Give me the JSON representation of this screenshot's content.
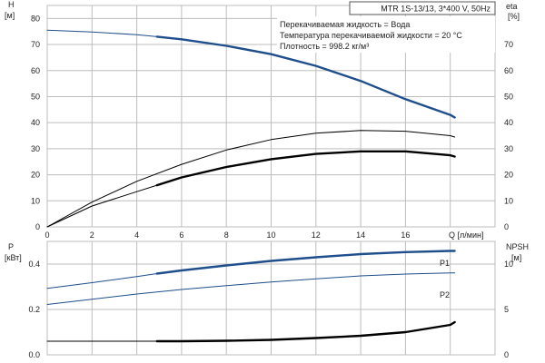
{
  "model_label": "MTR 1S-13/13, 3*400 V, 50Hz",
  "info_lines": [
    "Перекачиваемая жидкость = Вода",
    "Температура перекачиваемой жидкости = 20 °C",
    "Плотность = 998.2 кг/м³"
  ],
  "colors": {
    "blue": "#1f4e8c",
    "black": "#000000",
    "grid": "#bdbdbd"
  },
  "chart_data": [
    {
      "type": "line",
      "name": "performance",
      "x_label": "Q [л/мин]",
      "x_ticks": [
        0,
        2,
        4,
        6,
        8,
        10,
        12,
        14,
        16
      ],
      "xlim": [
        0,
        20
      ],
      "left_axis": {
        "label_top": "H",
        "label_unit": "[м]",
        "ticks": [
          0,
          10,
          20,
          30,
          40,
          50,
          60,
          70,
          80
        ],
        "ylim": [
          0,
          85
        ]
      },
      "right_axis": {
        "label_top": "eta",
        "label_unit": "[%]",
        "ticks": [
          0,
          10,
          20,
          30,
          40,
          50,
          60,
          70
        ],
        "ylim": [
          0,
          85
        ]
      },
      "series": [
        {
          "axis": "left",
          "color": "blue",
          "style": "thin",
          "x": [
            0,
            2,
            4,
            4.9
          ],
          "y": [
            75.5,
            74.8,
            73.8,
            73
          ]
        },
        {
          "axis": "left",
          "color": "blue",
          "style": "thick",
          "x": [
            4.9,
            6,
            8,
            10,
            12,
            14,
            16,
            18,
            18.2
          ],
          "y": [
            73,
            72,
            69.5,
            66.3,
            61.8,
            56,
            49,
            43,
            42
          ]
        },
        {
          "axis": "right",
          "color": "black",
          "style": "thin",
          "x": [
            0,
            2,
            4,
            6,
            8,
            10,
            12,
            14,
            16,
            18,
            18.2
          ],
          "y": [
            0,
            9.5,
            17.5,
            24,
            29.5,
            33.5,
            36,
            37,
            36.7,
            35,
            34.5
          ]
        },
        {
          "axis": "left",
          "color": "black",
          "style": "thin",
          "x": [
            0,
            2,
            4,
            4.9
          ],
          "y": [
            0,
            8,
            13.5,
            16
          ]
        },
        {
          "axis": "left",
          "color": "black",
          "style": "thick",
          "x": [
            4.9,
            6,
            8,
            10,
            12,
            14,
            16,
            18,
            18.2
          ],
          "y": [
            16,
            19,
            23,
            26,
            28,
            29,
            29,
            27.5,
            27
          ]
        }
      ]
    },
    {
      "type": "line",
      "name": "power-npsh",
      "left_axis": {
        "label_top": "P",
        "label_unit": "[кВт]",
        "ticks": [
          "0.0",
          "0.2",
          "0.4"
        ],
        "tick_values": [
          0,
          0.2,
          0.4
        ],
        "ylim": [
          0,
          0.5
        ]
      },
      "right_axis": {
        "label_top": "NPSH",
        "label_unit": "[м]",
        "ticks": [
          "0",
          "5",
          "10"
        ],
        "tick_values": [
          0,
          5,
          10
        ],
        "ylim": [
          0,
          12.5
        ]
      },
      "xlim": [
        0,
        20
      ],
      "series": [
        {
          "axis": "left",
          "color": "blue",
          "style": "thin",
          "x": [
            0,
            2,
            4,
            4.9
          ],
          "y": [
            0.293,
            0.318,
            0.345,
            0.358
          ]
        },
        {
          "axis": "left",
          "color": "blue",
          "style": "thick",
          "label": "P1",
          "x": [
            4.9,
            6,
            8,
            10,
            12,
            14,
            16,
            18,
            18.2
          ],
          "y": [
            0.358,
            0.372,
            0.394,
            0.414,
            0.43,
            0.444,
            0.453,
            0.458,
            0.458
          ]
        },
        {
          "axis": "left",
          "color": "blue",
          "style": "thin",
          "label": "P2",
          "x": [
            0,
            2,
            4,
            6,
            8,
            10,
            12,
            14,
            16,
            18,
            18.2
          ],
          "y": [
            0.222,
            0.245,
            0.268,
            0.288,
            0.305,
            0.321,
            0.335,
            0.348,
            0.356,
            0.361,
            0.361
          ]
        },
        {
          "axis": "right",
          "color": "black",
          "style": "thin",
          "x": [
            0,
            2,
            4,
            4.9
          ],
          "y": [
            1.5,
            1.5,
            1.5,
            1.5
          ]
        },
        {
          "axis": "right",
          "color": "black",
          "style": "thick",
          "x": [
            4.9,
            6,
            8,
            10,
            12,
            14,
            16,
            18,
            18.2
          ],
          "y": [
            1.5,
            1.5,
            1.55,
            1.65,
            1.85,
            2.1,
            2.5,
            3.3,
            3.6
          ]
        }
      ]
    }
  ]
}
